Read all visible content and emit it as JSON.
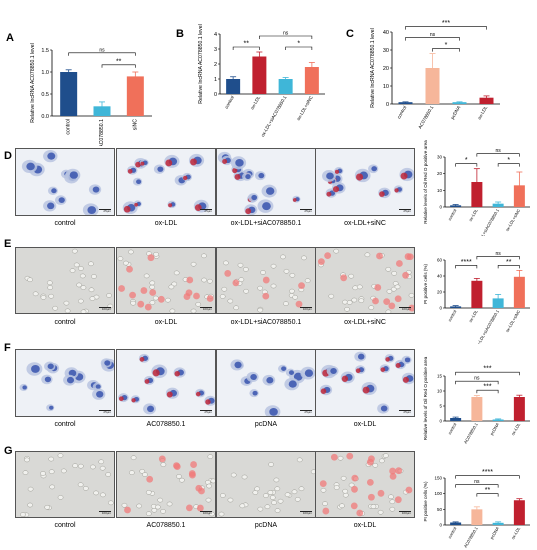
{
  "panels": {
    "A": "A",
    "B": "B",
    "C": "C",
    "D": "D",
    "E": "E",
    "F": "F",
    "G": "G"
  },
  "images": {
    "D": [
      "control",
      "ox-LDL",
      "ox-LDL+siAC078850.1",
      "ox-LDL+siNC"
    ],
    "E": [
      "control",
      "ox-LDL",
      "ox-LDL+siAC078850.1",
      "ox-LDL+siNC"
    ],
    "F": [
      "control",
      "AC078850.1",
      "pcDNA",
      "ox-LDL"
    ],
    "G": [
      "control",
      "AC078850.1",
      "pcDNA",
      "ox-LDL"
    ]
  },
  "scale_labels": {
    "D": [
      "25μm",
      "25μm",
      "25μm",
      "25μm"
    ],
    "E": [
      "100μm",
      "100μm",
      "100μm",
      "100μm"
    ],
    "F": [
      "25μm",
      "25μm",
      "25μm",
      "25μm"
    ],
    "G": [
      "100μm",
      "100μm",
      "100μm",
      "100μm"
    ]
  },
  "colors": {
    "dark_blue": "#1f4e8c",
    "light_blue": "#3fb6d8",
    "coral": "#f0705a",
    "dark_red": "#c0202f",
    "peach": "#f6b69a"
  },
  "chart_data": [
    {
      "id": "A",
      "type": "bar",
      "categories": [
        "control",
        "siAC078850.1",
        "siNC"
      ],
      "values": [
        1.0,
        0.22,
        0.9
      ],
      "errors": [
        0.05,
        0.1,
        0.1
      ],
      "colors": [
        "#1f4e8c",
        "#3fb6d8",
        "#f0705a"
      ],
      "ylabel": "Relative lncRNA AC078850.1 level",
      "ylim": [
        0,
        1.5
      ],
      "yticks": [
        "0.0",
        "0.5",
        "1.0",
        "1.5"
      ],
      "brackets": [
        {
          "from": 0,
          "to": 2,
          "label": "ns",
          "level": 2
        },
        {
          "from": 1,
          "to": 2,
          "label": "**",
          "level": 1
        }
      ]
    },
    {
      "id": "B",
      "type": "bar",
      "categories": [
        "control",
        "ox-LDL",
        "ox-LDL+siAC078850.1",
        "ox-LDL+siNC"
      ],
      "values": [
        1.0,
        2.5,
        1.0,
        1.8
      ],
      "errors": [
        0.15,
        0.3,
        0.1,
        0.3
      ],
      "colors": [
        "#1f4e8c",
        "#c0202f",
        "#3fb6d8",
        "#f0705a"
      ],
      "ylabel": "Relative lncRNA AC078850.1 level",
      "ylim": [
        0,
        4
      ],
      "yticks": [
        "0",
        "1",
        "2",
        "3",
        "4"
      ],
      "brackets": [
        {
          "from": 0,
          "to": 1,
          "label": "**",
          "level": 1
        },
        {
          "from": 2,
          "to": 3,
          "label": "*",
          "level": 1
        },
        {
          "from": 1,
          "to": 3,
          "label": "ns",
          "level": 2
        }
      ]
    },
    {
      "id": "C",
      "type": "bar",
      "categories": [
        "control",
        "AC078850.1",
        "pcDNA",
        "ox-LDL"
      ],
      "values": [
        1.0,
        20,
        1.0,
        3.5
      ],
      "errors": [
        0.2,
        8,
        0.2,
        1
      ],
      "colors": [
        "#1f4e8c",
        "#f6b69a",
        "#3fb6d8",
        "#c0202f"
      ],
      "ylabel": "Relative lncRNA AC078850.1 level",
      "ylim": [
        0,
        40
      ],
      "yticks": [
        "0",
        "10",
        "20",
        "30",
        "40"
      ],
      "brackets": [
        {
          "from": 1,
          "to": 2,
          "label": "*",
          "level": 1
        },
        {
          "from": 0,
          "to": 2,
          "label": "ns",
          "level": 2
        },
        {
          "from": 0,
          "to": 3,
          "label": "***",
          "level": 3
        }
      ]
    },
    {
      "id": "D",
      "type": "bar",
      "categories": [
        "control",
        "ox-LDL",
        "ox-LDL+siAC078850.1",
        "ox-LDL+siNC"
      ],
      "values": [
        1,
        15,
        2,
        13
      ],
      "errors": [
        0.5,
        8,
        1,
        8
      ],
      "colors": [
        "#1f4e8c",
        "#c0202f",
        "#3fb6d8",
        "#f0705a"
      ],
      "ylabel": "Relative levels of Oil Red O positive area",
      "ylim": [
        0,
        30
      ],
      "yticks": [
        "0",
        "10",
        "20",
        "30"
      ],
      "brackets": [
        {
          "from": 0,
          "to": 1,
          "label": "*",
          "level": 1
        },
        {
          "from": 2,
          "to": 3,
          "label": "*",
          "level": 1
        },
        {
          "from": 1,
          "to": 3,
          "label": "ns",
          "level": 2
        }
      ]
    },
    {
      "id": "E",
      "type": "bar",
      "categories": [
        "control",
        "ox-LDL",
        "ox-LDL+siAC078850.1",
        "ox-LDL+siNC"
      ],
      "values": [
        2,
        34,
        12,
        39
      ],
      "errors": [
        1,
        3,
        5,
        8
      ],
      "colors": [
        "#1f4e8c",
        "#c0202f",
        "#3fb6d8",
        "#f0705a"
      ],
      "ylabel": "PI positive cells (%)",
      "ylim": [
        0,
        60
      ],
      "yticks": [
        "0",
        "20",
        "40",
        "60"
      ],
      "brackets": [
        {
          "from": 0,
          "to": 1,
          "label": "****",
          "level": 1
        },
        {
          "from": 2,
          "to": 3,
          "label": "**",
          "level": 1
        },
        {
          "from": 1,
          "to": 3,
          "label": "ns",
          "level": 2
        }
      ]
    },
    {
      "id": "F",
      "type": "bar",
      "categories": [
        "control",
        "AC078850.1",
        "pcDNA",
        "ox-LDL"
      ],
      "values": [
        1,
        8,
        0.5,
        8
      ],
      "errors": [
        0.3,
        0.5,
        0.2,
        0.6
      ],
      "colors": [
        "#1f4e8c",
        "#f6b69a",
        "#3fb6d8",
        "#c0202f"
      ],
      "ylabel": "Relative levels of Oil Red O positive area",
      "ylim": [
        0,
        15
      ],
      "yticks": [
        "0",
        "5",
        "10",
        "15"
      ],
      "brackets": [
        {
          "from": 1,
          "to": 2,
          "label": "***",
          "level": 1
        },
        {
          "from": 0,
          "to": 2,
          "label": "ns",
          "level": 2
        },
        {
          "from": 0,
          "to": 3,
          "label": "***",
          "level": 3
        }
      ]
    },
    {
      "id": "G",
      "type": "bar",
      "categories": [
        "control",
        "AC078850.1",
        "pcDNA",
        "ox-LDL"
      ],
      "values": [
        8,
        50,
        7,
        79
      ],
      "errors": [
        2,
        8,
        3,
        5
      ],
      "colors": [
        "#1f4e8c",
        "#f6b69a",
        "#3fb6d8",
        "#c0202f"
      ],
      "ylabel": "PI positive cells (%)",
      "ylim": [
        0,
        150
      ],
      "yticks": [
        "0",
        "50",
        "100",
        "150"
      ],
      "brackets": [
        {
          "from": 1,
          "to": 2,
          "label": "**",
          "level": 1
        },
        {
          "from": 0,
          "to": 2,
          "label": "ns",
          "level": 2
        },
        {
          "from": 0,
          "to": 3,
          "label": "****",
          "level": 3
        }
      ]
    }
  ]
}
